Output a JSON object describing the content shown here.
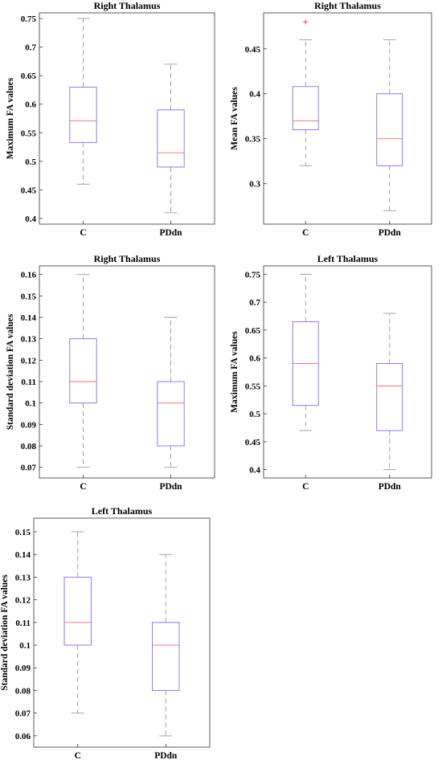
{
  "colors": {
    "box": "#7373f0",
    "median": "#ef6a6a",
    "whisker": "#999999",
    "outlier": "#ef4b4b",
    "axis": "#333333"
  },
  "chart_data": [
    {
      "type": "box",
      "title": "Right Thalamus",
      "ylabel": "Maximum FA values",
      "ylim": [
        0.39,
        0.76
      ],
      "yticks": [
        "0.4",
        "0.45",
        "0.5",
        "0.55",
        "0.6",
        "0.65",
        "0.7",
        "0.75"
      ],
      "categories": [
        "C",
        "PDdn"
      ],
      "boxes": [
        {
          "whisker_low": 0.46,
          "q1": 0.533,
          "median": 0.571,
          "q3": 0.63,
          "whisker_high": 0.75,
          "outliers": []
        },
        {
          "whisker_low": 0.41,
          "q1": 0.49,
          "median": 0.515,
          "q3": 0.59,
          "whisker_high": 0.67,
          "outliers": []
        }
      ]
    },
    {
      "type": "box",
      "title": "Right Thalamus",
      "ylabel": "Mean FA values",
      "ylim": [
        0.255,
        0.49
      ],
      "yticks": [
        "0.3",
        "0.35",
        "0.4",
        "0.45"
      ],
      "categories": [
        "C",
        "PDdn"
      ],
      "boxes": [
        {
          "whisker_low": 0.32,
          "q1": 0.36,
          "median": 0.37,
          "q3": 0.408,
          "whisker_high": 0.46,
          "outliers": [
            0.48
          ]
        },
        {
          "whisker_low": 0.27,
          "q1": 0.32,
          "median": 0.35,
          "q3": 0.4,
          "whisker_high": 0.46,
          "outliers": []
        }
      ]
    },
    {
      "type": "box",
      "title": "Right Thalamus",
      "ylabel": "Standard deviation FA values",
      "ylim": [
        0.065,
        0.164
      ],
      "yticks": [
        "0.07",
        "0.08",
        "0.09",
        "0.1",
        "0.11",
        "0.12",
        "0.13",
        "0.14",
        "0.15",
        "0.16"
      ],
      "categories": [
        "C",
        "PDdn"
      ],
      "boxes": [
        {
          "whisker_low": 0.07,
          "q1": 0.1,
          "median": 0.11,
          "q3": 0.13,
          "whisker_high": 0.16,
          "outliers": []
        },
        {
          "whisker_low": 0.07,
          "q1": 0.08,
          "median": 0.1,
          "q3": 0.11,
          "whisker_high": 0.14,
          "outliers": []
        }
      ]
    },
    {
      "type": "box",
      "title": "Left Thalamus",
      "ylabel": "Maximum FA values",
      "ylim": [
        0.385,
        0.765
      ],
      "yticks": [
        "0.4",
        "0.45",
        "0.5",
        "0.55",
        "0.6",
        "0.65",
        "0.7",
        "0.75"
      ],
      "categories": [
        "C",
        "PDdn"
      ],
      "boxes": [
        {
          "whisker_low": 0.47,
          "q1": 0.515,
          "median": 0.59,
          "q3": 0.665,
          "whisker_high": 0.75,
          "outliers": []
        },
        {
          "whisker_low": 0.4,
          "q1": 0.47,
          "median": 0.55,
          "q3": 0.59,
          "whisker_high": 0.68,
          "outliers": []
        }
      ]
    },
    {
      "type": "box",
      "title": "Left Thalamus",
      "ylabel": "Standard deviation FA values",
      "ylim": [
        0.055,
        0.156
      ],
      "yticks": [
        "0.06",
        "0.07",
        "0.08",
        "0.09",
        "0.1",
        "0.11",
        "0.12",
        "0.13",
        "0.14",
        "0.15"
      ],
      "categories": [
        "C",
        "PDdn"
      ],
      "boxes": [
        {
          "whisker_low": 0.07,
          "q1": 0.1,
          "median": 0.11,
          "q3": 0.13,
          "whisker_high": 0.15,
          "outliers": []
        },
        {
          "whisker_low": 0.06,
          "q1": 0.08,
          "median": 0.1,
          "q3": 0.11,
          "whisker_high": 0.14,
          "outliers": []
        }
      ]
    }
  ]
}
